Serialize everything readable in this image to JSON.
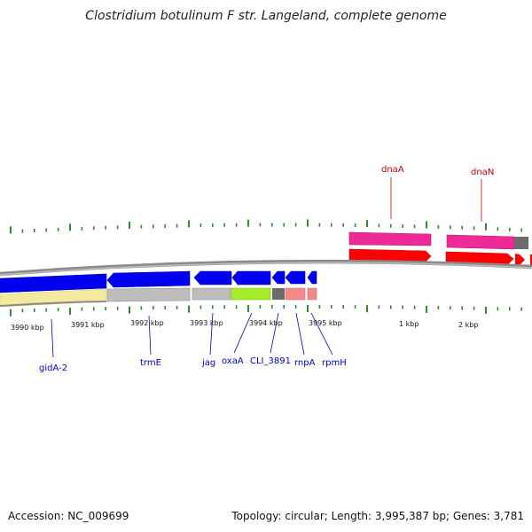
{
  "title": "Clostridium botulinum F str. Langeland, complete genome",
  "footer": {
    "accession": "Accession: NC_009699",
    "summary": "Topology: circular; Length: 3,995,387 bp; Genes: 3,781"
  },
  "colors": {
    "tick": "#2e8b2e",
    "backbone": "#888888",
    "plus_label": "#cc0000",
    "minus_label": "#0000cc"
  },
  "scale_labels": [
    "3990 kbp",
    "3991 kbp",
    "3992 kbp",
    "3993 kbp",
    "3994 kbp",
    "3995 kbp",
    "1 kbp",
    "2 kbp"
  ],
  "plus_strand_genes": [
    "dnaA",
    "dnaN"
  ],
  "minus_strand_genes": [
    "gidA-2",
    "trmE",
    "jag",
    "oxaA",
    "CLI_3891",
    "rnpA",
    "rpmH"
  ]
}
